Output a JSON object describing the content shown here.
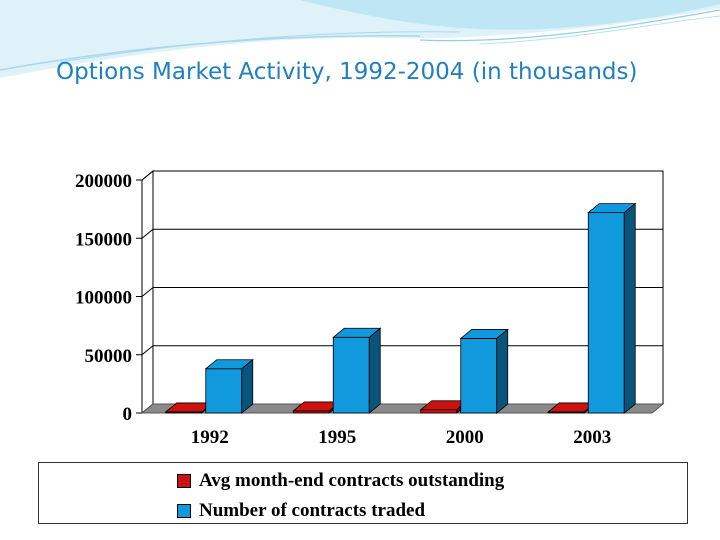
{
  "slide": {
    "title": "Options Market Activity, 1992-2004 (in thousands)"
  },
  "colors": {
    "title": "#1f7fc0",
    "series_red": "#cc1111",
    "series_blue": "#1199dd",
    "floor": "#888888"
  },
  "chart_data": {
    "type": "bar",
    "title": "Options Market Activity, 1992-2004 (in thousands)",
    "categories": [
      "1992",
      "1995",
      "2000",
      "2003"
    ],
    "series": [
      {
        "name": "Avg month-end contracts outstanding",
        "color": "#cc1111",
        "values": [
          900,
          1800,
          2800,
          900
        ]
      },
      {
        "name": "Number of contracts traded",
        "color": "#1199dd",
        "values": [
          38000,
          65000,
          64000,
          172000
        ]
      }
    ],
    "yticks": [
      "0",
      "50000",
      "100000",
      "150000",
      "200000"
    ],
    "ylim": [
      0,
      200000
    ],
    "grid": true,
    "legend": "bottom",
    "xlabel": "",
    "ylabel": ""
  }
}
